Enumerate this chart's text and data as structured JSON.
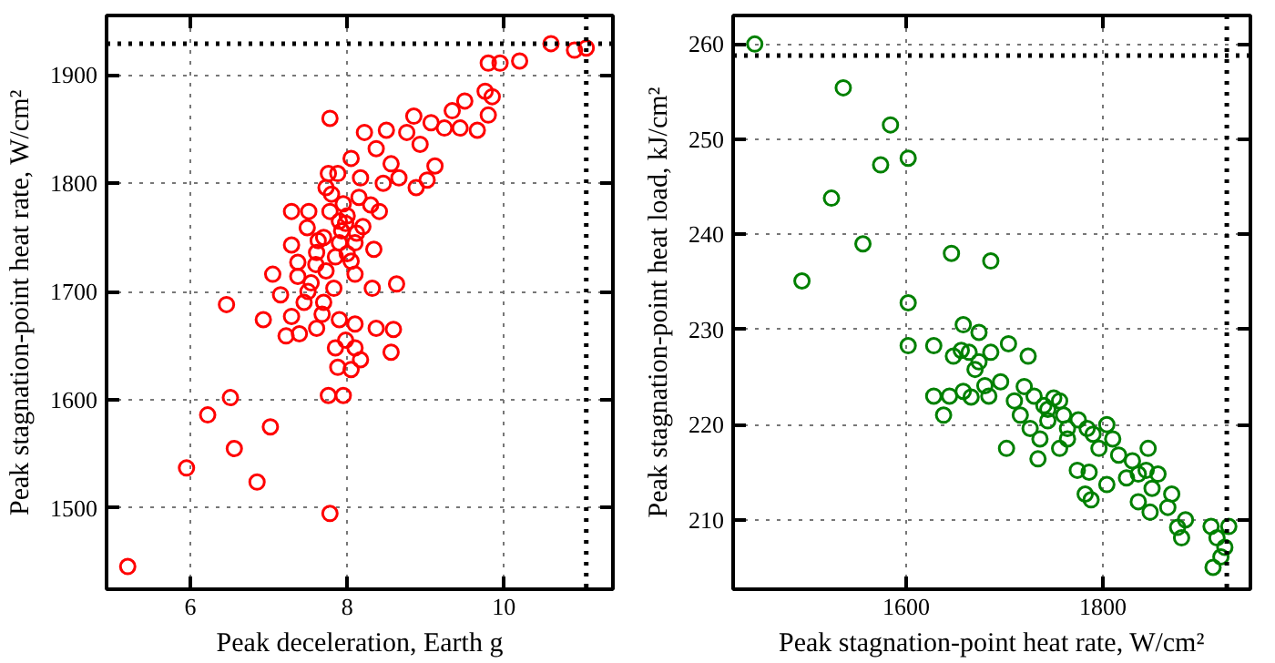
{
  "chart_data": [
    {
      "type": "scatter",
      "xlabel": "Peak deceleration, Earth g",
      "ylabel": "Peak stagnation-point heat rate, W/cm²",
      "xlim": [
        4.93,
        11.39
      ],
      "ylim": [
        1425,
        1955
      ],
      "xticks": [
        6,
        8,
        10
      ],
      "yticks": [
        1500,
        1600,
        1700,
        1800,
        1900
      ],
      "grid": true,
      "marker": "circle",
      "ref_lines": [
        {
          "axis": "y",
          "value": 1929,
          "color": "#000000",
          "line_style": "dotted"
        },
        {
          "axis": "x",
          "value": 11.05,
          "color": "#000000",
          "line_style": "dotted"
        }
      ],
      "series": [
        {
          "color": "#ff0000",
          "x": [
            5.2,
            5.95,
            6.22,
            6.51,
            6.56,
            6.85,
            7.02,
            6.46,
            6.93,
            7.78,
            7.76,
            7.95,
            7.88,
            8.05,
            7.85,
            8.1,
            7.98,
            8.17,
            8.56,
            8.59,
            8.37,
            8.1,
            7.9,
            7.68,
            7.61,
            7.39,
            7.22,
            7.29,
            7.78,
            8.22,
            8.5,
            8.85,
            9.07,
            9.34,
            9.5,
            9.76,
            9.85,
            9.8,
            9.66,
            9.44,
            9.24,
            8.93,
            8.76,
            8.37,
            8.05,
            8.56,
            9.12,
            9.02,
            8.88,
            8.66,
            7.76,
            7.88,
            8.17,
            8.46,
            7.73,
            7.51,
            7.29,
            7.49,
            7.29,
            7.61,
            7.78,
            7.98,
            8.12,
            8.34,
            8.41,
            8.15,
            7.95,
            7.37,
            7.05,
            7.15,
            7.54,
            7.73,
            7.85,
            8.05,
            8.1,
            7.83,
            8.32,
            8.63,
            7.37,
            7.63,
            7.93,
            10.6,
            11.05,
            10.9,
            10.2,
            9.95,
            9.8,
            7.7,
            7.9,
            8.0,
            7.6,
            8.2,
            7.8,
            8.0,
            7.7,
            7.5,
            8.3,
            7.9,
            8.1,
            7.45
          ],
          "values": [
            1446,
            1537,
            1586,
            1602,
            1555,
            1524,
            1575,
            1688,
            1674,
            1495,
            1604,
            1604,
            1630,
            1628,
            1648,
            1648,
            1655,
            1637,
            1644,
            1665,
            1666,
            1670,
            1674,
            1679,
            1666,
            1661,
            1659,
            1677,
            1860,
            1847,
            1849,
            1862,
            1856,
            1867,
            1876,
            1885,
            1880,
            1863,
            1849,
            1851,
            1851,
            1836,
            1847,
            1832,
            1823,
            1818,
            1816,
            1803,
            1796,
            1805,
            1809,
            1809,
            1805,
            1800,
            1796,
            1774,
            1774,
            1759,
            1743,
            1736,
            1774,
            1763,
            1754,
            1739,
            1774,
            1787,
            1781,
            1727,
            1716,
            1697,
            1708,
            1719,
            1732,
            1728,
            1716,
            1703,
            1703,
            1707,
            1714,
            1747,
            1756,
            1929,
            1925,
            1923,
            1913,
            1911,
            1911,
            1750,
            1745,
            1770,
            1725,
            1760,
            1790,
            1735,
            1690,
            1700,
            1780,
            1765,
            1745,
            1690
          ]
        }
      ]
    },
    {
      "type": "scatter",
      "xlabel": "Peak stagnation-point heat rate, W/cm²",
      "ylabel": "Peak stagnation-point heat load, kJ/cm²",
      "xlim": [
        1424,
        1950
      ],
      "ylim": [
        202.7,
        263
      ],
      "xticks": [
        1600,
        1800
      ],
      "yticks": [
        210,
        220,
        230,
        240,
        250,
        260
      ],
      "grid": true,
      "marker": "circle",
      "ref_lines": [
        {
          "axis": "y",
          "value": 258.8,
          "color": "#000000",
          "line_style": "dotted"
        },
        {
          "axis": "x",
          "value": 1926,
          "color": "#000000",
          "line_style": "dotted"
        }
      ],
      "series": [
        {
          "color": "#008000",
          "x": [
            1446,
            1536,
            1584,
            1574,
            1602,
            1524,
            1556,
            1646,
            1686,
            1494,
            1602,
            1602,
            1658,
            1674,
            1628,
            1648,
            1628,
            1644,
            1638,
            1702,
            1734,
            1658,
            1666,
            1680,
            1704,
            1686,
            1664,
            1670,
            1724,
            1696,
            1710,
            1730,
            1744,
            1756,
            1744,
            1764,
            1784,
            1804,
            1810,
            1796,
            1774,
            1786,
            1816,
            1830,
            1846,
            1844,
            1856,
            1850,
            1870,
            1836,
            1848,
            1866,
            1876,
            1884,
            1880,
            1910,
            1928,
            1916,
            1924,
            1920,
            1912,
            1782,
            1788,
            1804,
            1764,
            1756,
            1736,
            1716,
            1726,
            1836,
            1824,
            1674,
            1684,
            1656,
            1740,
            1760,
            1775,
            1790,
            1720,
            1750
          ],
          "values": [
            260,
            255.4,
            251.5,
            247.3,
            248,
            243.8,
            239,
            238,
            237.2,
            235.1,
            232.8,
            228.3,
            230.5,
            229.7,
            228.3,
            227.2,
            223,
            223,
            221,
            217.5,
            216.4,
            223.5,
            222.9,
            224.1,
            228.5,
            227.6,
            227.6,
            225.8,
            227.2,
            224.5,
            222.5,
            223,
            221.6,
            222.5,
            220.4,
            219.6,
            219.6,
            220,
            218.5,
            217.5,
            215.2,
            215,
            216.8,
            216.2,
            217.5,
            215.2,
            214.8,
            213.3,
            212.7,
            211.9,
            210.8,
            211.3,
            209.2,
            210,
            208.1,
            209.3,
            209.3,
            208.1,
            207.1,
            206.1,
            205,
            212.7,
            212.1,
            213.7,
            218.5,
            217.5,
            218.5,
            221,
            219.6,
            214.8,
            214.4,
            226.6,
            223,
            227.8,
            222,
            221,
            220.5,
            219,
            224,
            222.8
          ]
        }
      ]
    }
  ]
}
